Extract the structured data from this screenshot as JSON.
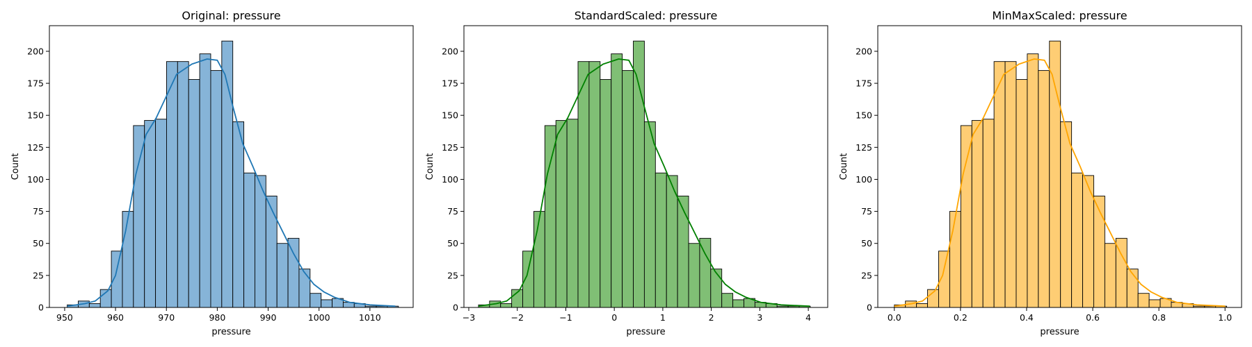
{
  "chart_data": [
    {
      "type": "bar",
      "title": "Original: pressure",
      "xlabel": "pressure",
      "ylabel": "Count",
      "xlim": [
        947,
        1018.5
      ],
      "ylim": [
        0,
        220
      ],
      "xticks": [
        950,
        960,
        970,
        980,
        990,
        1000,
        1010
      ],
      "xtick_labels": [
        "950",
        "960",
        "970",
        "980",
        "990",
        "1000",
        "1010"
      ],
      "yticks": [
        0,
        25,
        50,
        75,
        100,
        125,
        150,
        175,
        200
      ],
      "ytick_labels": [
        "0",
        "25",
        "50",
        "75",
        "100",
        "125",
        "150",
        "175",
        "200"
      ],
      "bin_start": 950.5,
      "bin_width": 2.17,
      "counts": [
        2,
        5,
        3,
        14,
        44,
        75,
        142,
        146,
        147,
        192,
        192,
        178,
        198,
        185,
        208,
        145,
        105,
        103,
        87,
        50,
        54,
        30,
        11,
        6,
        7,
        4,
        3,
        1,
        1,
        1
      ],
      "kde": [
        [
          950.5,
          1
        ],
        [
          954,
          3
        ],
        [
          956,
          5
        ],
        [
          958.5,
          13
        ],
        [
          960,
          25
        ],
        [
          962,
          60
        ],
        [
          964,
          104
        ],
        [
          966,
          135
        ],
        [
          968,
          148
        ],
        [
          970,
          165
        ],
        [
          972,
          182
        ],
        [
          975,
          190
        ],
        [
          978,
          194
        ],
        [
          980,
          193
        ],
        [
          981.5,
          182
        ],
        [
          983,
          158
        ],
        [
          985,
          128
        ],
        [
          987,
          110
        ],
        [
          989,
          91
        ],
        [
          991,
          74
        ],
        [
          993,
          58
        ],
        [
          995,
          42
        ],
        [
          997,
          28
        ],
        [
          999,
          18
        ],
        [
          1001,
          12
        ],
        [
          1003,
          8
        ],
        [
          1006,
          4
        ],
        [
          1010,
          2
        ],
        [
          1015,
          1
        ]
      ],
      "bar_fill": "#86b4d8",
      "kde_color": "#1f77b4"
    },
    {
      "type": "bar",
      "title": "StandardScaled: pressure",
      "xlabel": "pressure",
      "ylabel": "Count",
      "xlim": [
        -3.1,
        4.4
      ],
      "ylim": [
        0,
        220
      ],
      "xticks": [
        -3,
        -2,
        -1,
        0,
        1,
        2,
        3,
        4
      ],
      "xtick_labels": [
        "−3",
        "−2",
        "−1",
        "0",
        "1",
        "2",
        "3",
        "4"
      ],
      "yticks": [
        0,
        25,
        50,
        75,
        100,
        125,
        150,
        175,
        200
      ],
      "ytick_labels": [
        "0",
        "25",
        "50",
        "75",
        "100",
        "125",
        "150",
        "175",
        "200"
      ],
      "bin_start": -2.8,
      "bin_width": 0.228,
      "counts": [
        2,
        5,
        3,
        14,
        44,
        75,
        142,
        146,
        147,
        192,
        192,
        178,
        198,
        185,
        208,
        145,
        105,
        103,
        87,
        50,
        54,
        30,
        11,
        6,
        7,
        4,
        3,
        1,
        1,
        1
      ],
      "kde": [
        [
          -2.8,
          1
        ],
        [
          -2.43,
          3
        ],
        [
          -2.22,
          5
        ],
        [
          -1.96,
          13
        ],
        [
          -1.8,
          25
        ],
        [
          -1.59,
          60
        ],
        [
          -1.38,
          104
        ],
        [
          -1.17,
          135
        ],
        [
          -0.96,
          148
        ],
        [
          -0.75,
          165
        ],
        [
          -0.54,
          182
        ],
        [
          -0.23,
          190
        ],
        [
          0.09,
          194
        ],
        [
          0.3,
          193
        ],
        [
          0.45,
          182
        ],
        [
          0.61,
          158
        ],
        [
          0.82,
          128
        ],
        [
          1.03,
          110
        ],
        [
          1.24,
          91
        ],
        [
          1.45,
          74
        ],
        [
          1.66,
          58
        ],
        [
          1.87,
          42
        ],
        [
          2.08,
          28
        ],
        [
          2.29,
          18
        ],
        [
          2.5,
          12
        ],
        [
          2.71,
          8
        ],
        [
          3.02,
          4
        ],
        [
          3.44,
          2
        ],
        [
          4.03,
          1
        ]
      ],
      "bar_fill": "#80bf75",
      "kde_color": "#008000"
    },
    {
      "type": "bar",
      "title": "MinMaxScaled: pressure",
      "xlabel": "pressure",
      "ylabel": "Count",
      "xlim": [
        -0.05,
        1.05
      ],
      "ylim": [
        0,
        220
      ],
      "xticks": [
        0.0,
        0.2,
        0.4,
        0.6,
        0.8,
        1.0
      ],
      "xtick_labels": [
        "0.0",
        "0.2",
        "0.4",
        "0.6",
        "0.8",
        "1.0"
      ],
      "yticks": [
        0,
        25,
        50,
        75,
        100,
        125,
        150,
        175,
        200
      ],
      "ytick_labels": [
        "0",
        "25",
        "50",
        "75",
        "100",
        "125",
        "150",
        "175",
        "200"
      ],
      "bin_start": 0.0,
      "bin_width": 0.0335,
      "counts": [
        2,
        5,
        3,
        14,
        44,
        75,
        142,
        146,
        147,
        192,
        192,
        178,
        198,
        185,
        208,
        145,
        105,
        103,
        87,
        50,
        54,
        30,
        11,
        6,
        7,
        4,
        3,
        1,
        1,
        1
      ],
      "kde": [
        [
          0.0,
          1
        ],
        [
          0.054,
          3
        ],
        [
          0.085,
          5
        ],
        [
          0.123,
          13
        ],
        [
          0.146,
          25
        ],
        [
          0.177,
          60
        ],
        [
          0.208,
          104
        ],
        [
          0.238,
          135
        ],
        [
          0.269,
          148
        ],
        [
          0.3,
          165
        ],
        [
          0.331,
          182
        ],
        [
          0.377,
          190
        ],
        [
          0.423,
          194
        ],
        [
          0.454,
          193
        ],
        [
          0.477,
          182
        ],
        [
          0.5,
          158
        ],
        [
          0.531,
          128
        ],
        [
          0.562,
          110
        ],
        [
          0.592,
          91
        ],
        [
          0.623,
          74
        ],
        [
          0.654,
          58
        ],
        [
          0.685,
          42
        ],
        [
          0.715,
          28
        ],
        [
          0.746,
          18
        ],
        [
          0.777,
          12
        ],
        [
          0.808,
          8
        ],
        [
          0.854,
          4
        ],
        [
          0.915,
          2
        ],
        [
          1.0,
          1
        ]
      ],
      "bar_fill": "#fecd74",
      "kde_color": "#ffa500"
    }
  ]
}
